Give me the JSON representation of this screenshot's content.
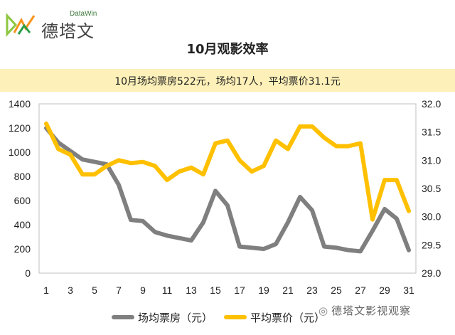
{
  "brand": {
    "sub": "DataWin",
    "name": "德塔文"
  },
  "header": {
    "title": "10月观影效率",
    "subtitle": "10月场均票房522元，场均17人，平均票价31.1元"
  },
  "watermark": "德塔文影视观察",
  "colors": {
    "series_box": "#7f7f7f",
    "series_price": "#ffc000",
    "axis": "#bfbfbf",
    "banner": "#fdf0b8"
  },
  "chart_data": {
    "type": "line",
    "x": [
      1,
      2,
      3,
      4,
      5,
      6,
      7,
      8,
      9,
      10,
      11,
      12,
      13,
      14,
      15,
      16,
      17,
      18,
      19,
      20,
      21,
      22,
      23,
      24,
      25,
      26,
      27,
      28,
      29,
      30,
      31
    ],
    "x_ticks": [
      "1",
      "3",
      "5",
      "7",
      "9",
      "11",
      "13",
      "15",
      "17",
      "19",
      "21",
      "23",
      "25",
      "27",
      "29",
      "31"
    ],
    "y_left": {
      "ylim": [
        0,
        1400
      ],
      "ticks": [
        "0",
        "200",
        "400",
        "600",
        "800",
        "1000",
        "1200",
        "1400"
      ]
    },
    "y_right": {
      "ylim": [
        29.0,
        32.0
      ],
      "ticks": [
        "29.0",
        "29.5",
        "30.0",
        "30.5",
        "31.0",
        "31.5",
        "32.0"
      ]
    },
    "series": [
      {
        "name": "场均票房（元）",
        "axis": "left",
        "values": [
          1200,
          1080,
          1010,
          940,
          920,
          900,
          730,
          440,
          430,
          340,
          310,
          290,
          270,
          420,
          680,
          560,
          220,
          210,
          200,
          240,
          420,
          630,
          520,
          220,
          210,
          190,
          180,
          350,
          530,
          450,
          190
        ]
      },
      {
        "name": "平均票价（元）",
        "axis": "right",
        "values": [
          31.65,
          31.2,
          31.1,
          30.75,
          30.75,
          30.9,
          31.0,
          30.95,
          30.97,
          30.9,
          30.65,
          30.8,
          30.87,
          30.75,
          31.3,
          31.35,
          31.0,
          30.8,
          30.9,
          31.35,
          31.2,
          31.6,
          31.6,
          31.4,
          31.25,
          31.25,
          31.3,
          29.95,
          30.65,
          30.65,
          30.1
        ]
      }
    ]
  }
}
